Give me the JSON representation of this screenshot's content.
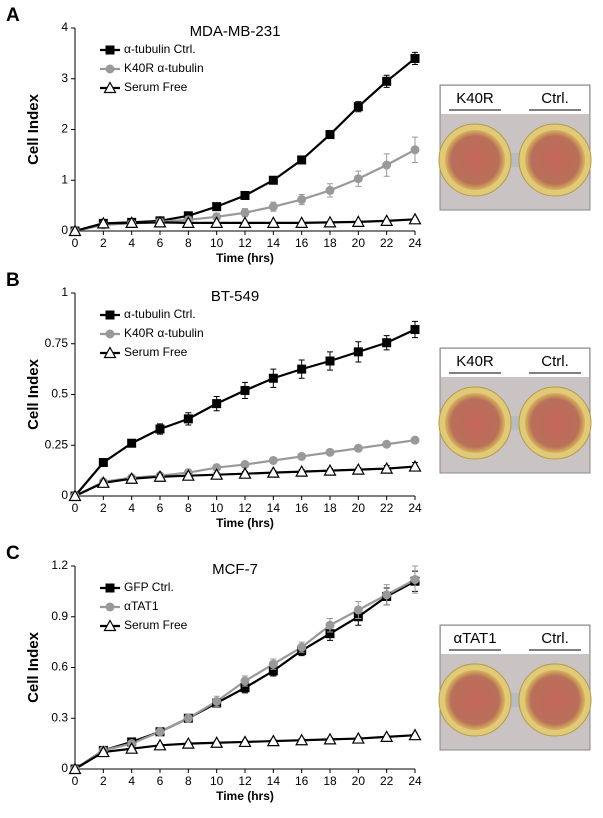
{
  "chart_data": [
    {
      "type": "line",
      "panel": "A",
      "title": "MDA-MB-231",
      "xlabel": "Time (hrs)",
      "ylabel": "Cell Index",
      "x": [
        0,
        2,
        4,
        6,
        8,
        10,
        12,
        14,
        16,
        18,
        20,
        22,
        24
      ],
      "xlim": [
        0,
        24
      ],
      "xticks": [
        0,
        2,
        4,
        6,
        8,
        10,
        12,
        14,
        16,
        18,
        20,
        22,
        24
      ],
      "ylim": [
        0,
        4
      ],
      "yticks": [
        0,
        1,
        2,
        3,
        4
      ],
      "legend": "upper left",
      "image_labels": [
        "K40R",
        "Ctrl."
      ],
      "series": [
        {
          "name": "α-tubulin Ctrl.",
          "color": "#000000",
          "marker": "square",
          "values": [
            0,
            0.15,
            0.17,
            0.2,
            0.3,
            0.48,
            0.7,
            1.0,
            1.4,
            1.9,
            2.45,
            2.95,
            3.4
          ],
          "errors": [
            0,
            0.02,
            0.02,
            0.03,
            0.04,
            0.05,
            0.05,
            0.05,
            0.06,
            0.07,
            0.1,
            0.12,
            0.12
          ]
        },
        {
          "name": "K40R α-tubulin",
          "color": "#999999",
          "marker": "circle",
          "values": [
            0,
            0.12,
            0.15,
            0.18,
            0.22,
            0.28,
            0.36,
            0.48,
            0.62,
            0.8,
            1.03,
            1.3,
            1.6
          ],
          "errors": [
            0,
            0.02,
            0.03,
            0.03,
            0.05,
            0.07,
            0.08,
            0.09,
            0.1,
            0.13,
            0.15,
            0.22,
            0.25
          ]
        },
        {
          "name": "Serum Free",
          "color": "#000000",
          "marker": "triangle",
          "values": [
            0,
            0.15,
            0.16,
            0.17,
            0.16,
            0.16,
            0.16,
            0.16,
            0.16,
            0.17,
            0.18,
            0.2,
            0.23
          ],
          "errors": [
            0,
            0.01,
            0.01,
            0.01,
            0.01,
            0.01,
            0.01,
            0.01,
            0.01,
            0.01,
            0.01,
            0.02,
            0.02
          ]
        }
      ]
    },
    {
      "type": "line",
      "panel": "B",
      "title": "BT-549",
      "xlabel": "Time (hrs)",
      "ylabel": "Cell Index",
      "x": [
        0,
        2,
        4,
        6,
        8,
        10,
        12,
        14,
        16,
        18,
        20,
        22,
        24
      ],
      "xlim": [
        0,
        24
      ],
      "xticks": [
        0,
        2,
        4,
        6,
        8,
        10,
        12,
        14,
        16,
        18,
        20,
        22,
        24
      ],
      "ylim": [
        0,
        1
      ],
      "yticks": [
        0,
        0.25,
        0.5,
        0.75,
        1
      ],
      "legend": "upper left",
      "image_labels": [
        "K40R",
        "Ctrl."
      ],
      "series": [
        {
          "name": "α-tubulin Ctrl.",
          "color": "#000000",
          "marker": "square",
          "values": [
            0,
            0.165,
            0.26,
            0.33,
            0.38,
            0.455,
            0.52,
            0.58,
            0.625,
            0.665,
            0.71,
            0.755,
            0.82
          ],
          "errors": [
            0,
            0.01,
            0.01,
            0.025,
            0.03,
            0.035,
            0.04,
            0.045,
            0.045,
            0.045,
            0.05,
            0.035,
            0.04
          ]
        },
        {
          "name": "K40R α-tubulin",
          "color": "#999999",
          "marker": "circle",
          "values": [
            0,
            0.07,
            0.09,
            0.1,
            0.115,
            0.14,
            0.155,
            0.175,
            0.195,
            0.215,
            0.235,
            0.255,
            0.275
          ],
          "errors": [
            0,
            0.005,
            0.005,
            0.005,
            0.005,
            0.01,
            0.01,
            0.01,
            0.01,
            0.01,
            0.01,
            0.01,
            0.01
          ]
        },
        {
          "name": "Serum Free",
          "color": "#000000",
          "marker": "triangle",
          "values": [
            0,
            0.065,
            0.085,
            0.095,
            0.1,
            0.105,
            0.11,
            0.115,
            0.12,
            0.125,
            0.13,
            0.135,
            0.145
          ],
          "errors": [
            0,
            0.01,
            0.01,
            0.01,
            0.01,
            0.01,
            0.01,
            0.01,
            0.01,
            0.01,
            0.01,
            0.015,
            0.02
          ]
        }
      ]
    },
    {
      "type": "line",
      "panel": "C",
      "title": "MCF-7",
      "xlabel": "Time (hrs)",
      "ylabel": "Cell Index",
      "x": [
        0,
        2,
        4,
        6,
        8,
        10,
        12,
        14,
        16,
        18,
        20,
        22,
        24
      ],
      "xlim": [
        0,
        24
      ],
      "xticks": [
        0,
        2,
        4,
        6,
        8,
        10,
        12,
        14,
        16,
        18,
        20,
        22,
        24
      ],
      "ylim": [
        0,
        1.2
      ],
      "yticks": [
        0,
        0.3,
        0.6,
        0.9,
        1.2
      ],
      "legend": "upper left",
      "image_labels": [
        "αTAT1",
        "Ctrl."
      ],
      "series": [
        {
          "name": "GFP Ctrl.",
          "color": "#000000",
          "marker": "square",
          "values": [
            0,
            0.11,
            0.16,
            0.22,
            0.3,
            0.39,
            0.48,
            0.58,
            0.7,
            0.8,
            0.9,
            1.02,
            1.11
          ],
          "errors": [
            0,
            0.01,
            0.02,
            0.02,
            0.02,
            0.02,
            0.03,
            0.03,
            0.03,
            0.04,
            0.05,
            0.05,
            0.06
          ]
        },
        {
          "name": "αTAT1",
          "color": "#999999",
          "marker": "circle",
          "values": [
            0,
            0.11,
            0.15,
            0.22,
            0.3,
            0.4,
            0.52,
            0.62,
            0.72,
            0.85,
            0.94,
            1.03,
            1.12
          ],
          "errors": [
            0,
            0.01,
            0.02,
            0.01,
            0.02,
            0.03,
            0.03,
            0.03,
            0.03,
            0.04,
            0.05,
            0.06,
            0.08
          ]
        },
        {
          "name": "Serum Free",
          "color": "#000000",
          "marker": "triangle",
          "values": [
            0,
            0.1,
            0.12,
            0.14,
            0.15,
            0.155,
            0.16,
            0.165,
            0.17,
            0.175,
            0.18,
            0.19,
            0.2
          ],
          "errors": [
            0,
            0.01,
            0.01,
            0.01,
            0.01,
            0.01,
            0.01,
            0.01,
            0.01,
            0.01,
            0.01,
            0.01,
            0.01
          ]
        }
      ]
    }
  ]
}
